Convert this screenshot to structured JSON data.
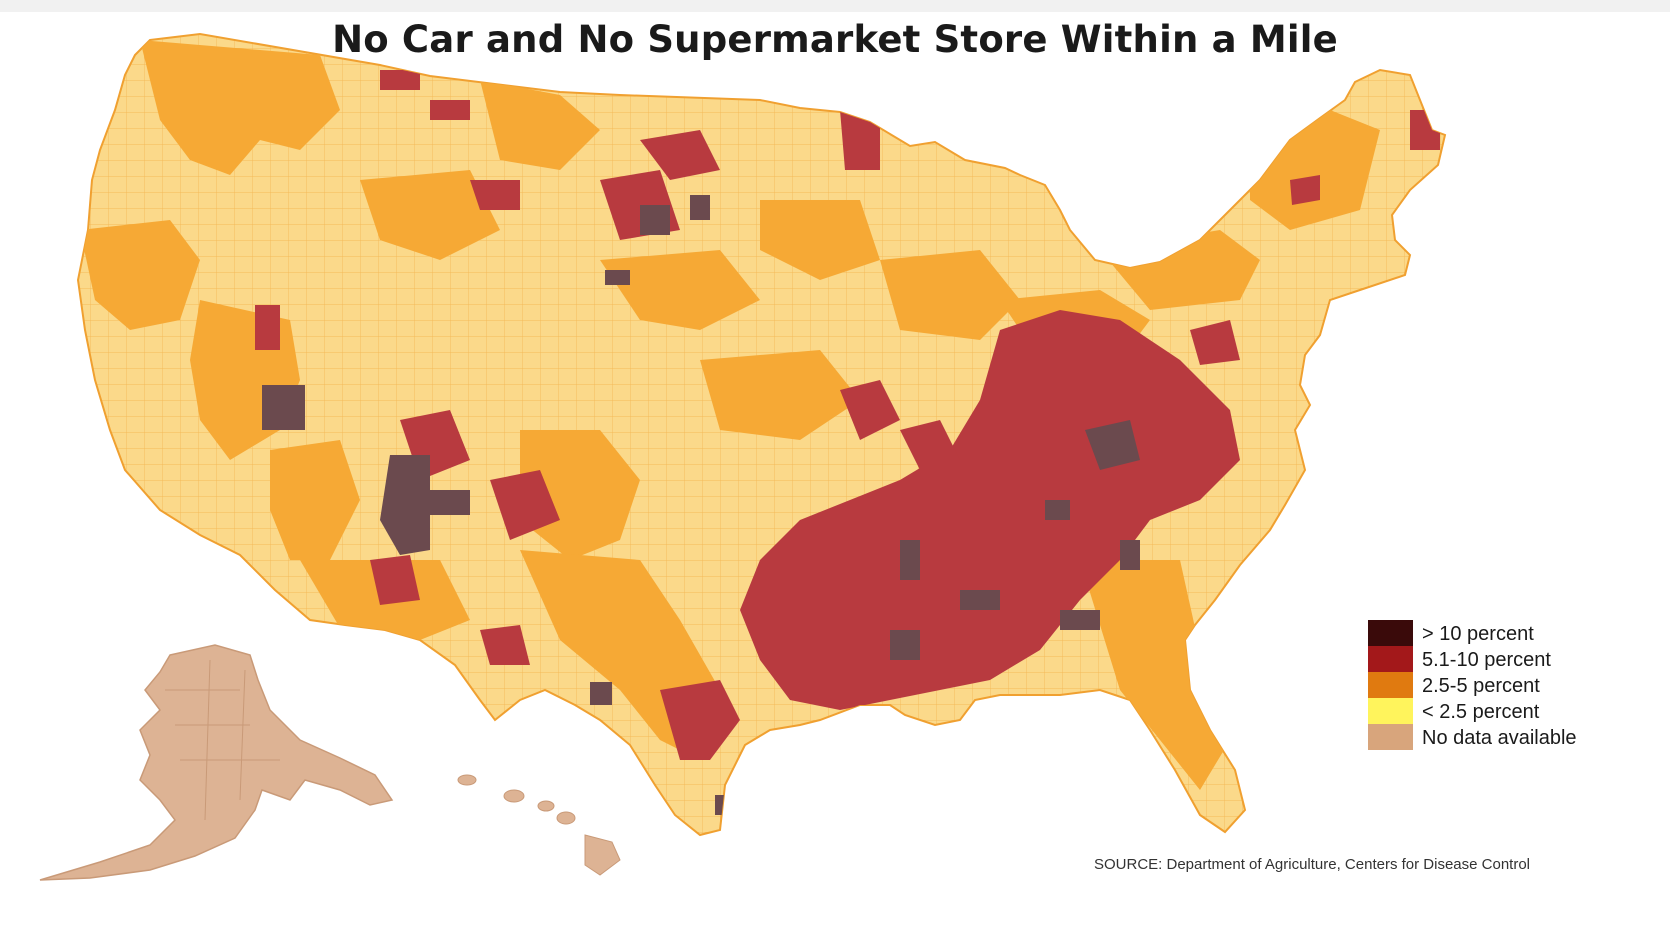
{
  "title": "No Car and No Supermarket Store Within a Mile",
  "legend": {
    "items": [
      {
        "label": "> 10 percent",
        "color": "#3a0a0a"
      },
      {
        "label": "5.1-10 percent",
        "color": "#a3181a"
      },
      {
        "label": "2.5-5 percent",
        "color": "#e07a10"
      },
      {
        "label": "< 2.5 percent",
        "color": "#fff45c"
      },
      {
        "label": "No data available",
        "color": "#d8a57c"
      }
    ]
  },
  "map_colors": {
    "base_light": "#fbd98a",
    "medium": "#f6a935",
    "high": "#b83a3f",
    "very_high": "#6b4a4e",
    "no_data": "#ddb394",
    "county_lines": "#f0a030"
  },
  "source": "SOURCE: Department of Agriculture, Centers for Disease Control"
}
